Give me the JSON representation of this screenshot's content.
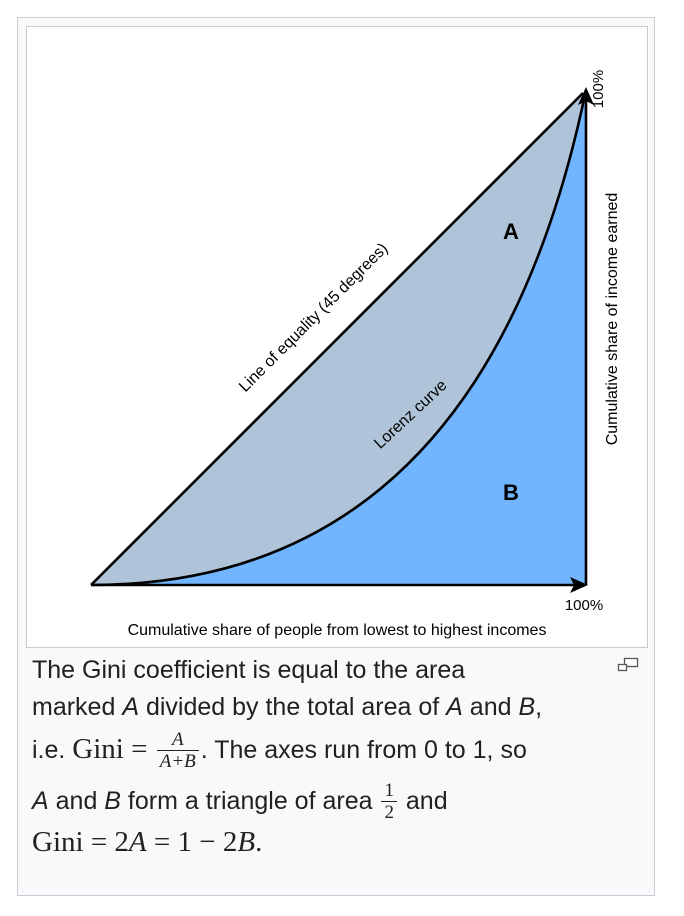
{
  "diagram": {
    "labels": {
      "equality_line": "Line of equality (45 degrees)",
      "lorenz_curve": "Lorenz curve",
      "area_a": "A",
      "area_b": "B",
      "x_axis": "Cumulative share of people from lowest to highest incomes",
      "y_axis": "Cumulative share of income earned",
      "x_max": "100%",
      "y_max": "100%"
    },
    "colors": {
      "area_a": "#afc4d8",
      "area_b": "#72b5ff",
      "lines": "#000000",
      "frame_border": "#c8ccd1"
    }
  },
  "caption": {
    "line1_text": "The Gini coefficient is equal to the area",
    "line2_a": "marked ",
    "line2_A": "A",
    "line2_b": " divided by the total area of ",
    "line2_A2": "A",
    "line2_c": " and ",
    "line2_B": "B",
    "line2_d": ",",
    "line3_ie": "i.e. ",
    "line3_gini": "Gini",
    "line3_eq": " = ",
    "frac1_num": "A",
    "frac1_den": "A+B",
    "line3_rest": ". The axes run from 0 to 1, so",
    "line4_A": "A",
    "line4_and": " and ",
    "line4_B": "B",
    "line4_text": " form a triangle of area ",
    "frac2_num": "1",
    "frac2_den": "2",
    "line4_end": " and",
    "line5_gini": "Gini",
    "line5_eq1": " = 2",
    "line5_A": "A",
    "line5_eq2": " = 1 − 2",
    "line5_B": "B",
    "line5_end": "."
  },
  "icons": {
    "magnify": "magnify-clip-icon"
  }
}
